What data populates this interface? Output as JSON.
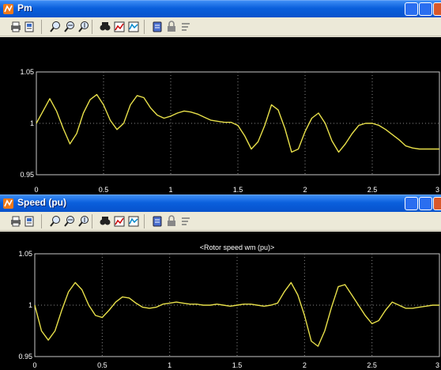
{
  "windows": [
    {
      "title": "Pm",
      "plot": {
        "title": "",
        "y_ticks": [
          "1.05",
          "1",
          "0.95"
        ],
        "x_ticks": [
          "0",
          "0.5",
          "1",
          "1.5",
          "2",
          "2.5",
          "3"
        ]
      }
    },
    {
      "title": "Speed (pu)",
      "plot": {
        "title": "<Rotor speed wm (pu)>",
        "y_ticks": [
          "1.05",
          "1",
          "0.95"
        ],
        "x_ticks": [
          "0",
          "0.5",
          "1",
          "1.5",
          "2",
          "2.5",
          "3"
        ]
      }
    }
  ],
  "toolbar_icons": [
    "print-icon",
    "print-preview-icon",
    "zoom-icon",
    "zoom-x-icon",
    "zoom-y-icon",
    "autoscale-icon",
    "save-axes-icon",
    "restore-axes-icon",
    "parameters-icon",
    "lock-icon",
    "signal-selection-icon"
  ],
  "colors": {
    "trace": "#e8e04a",
    "plot_bg": "#000000",
    "titlebar": "#0a5fdc"
  },
  "chart_data": [
    {
      "type": "line",
      "title": "",
      "xlabel": "",
      "ylabel": "",
      "xlim": [
        0,
        3
      ],
      "ylim": [
        0.95,
        1.05
      ],
      "grid": true,
      "series": [
        {
          "x": [
            0,
            0.05,
            0.1,
            0.15,
            0.2,
            0.25,
            0.3,
            0.35,
            0.4,
            0.45,
            0.5,
            0.55,
            0.6,
            0.65,
            0.7,
            0.75,
            0.8,
            0.85,
            0.9,
            0.95,
            1.0,
            1.05,
            1.1,
            1.15,
            1.2,
            1.25,
            1.3,
            1.35,
            1.4,
            1.45,
            1.5,
            1.55,
            1.6,
            1.65,
            1.7,
            1.75,
            1.8,
            1.85,
            1.9,
            1.95,
            2.0,
            2.05,
            2.1,
            2.15,
            2.2,
            2.25,
            2.3,
            2.35,
            2.4,
            2.45,
            2.5,
            2.55,
            2.6,
            2.65,
            2.7,
            2.75,
            2.8,
            2.85,
            2.9,
            2.95,
            3.0
          ],
          "y": [
            1.0,
            1.012,
            1.024,
            1.012,
            0.995,
            0.98,
            0.99,
            1.01,
            1.023,
            1.028,
            1.018,
            1.003,
            0.994,
            1.0,
            1.018,
            1.027,
            1.025,
            1.015,
            1.008,
            1.005,
            1.007,
            1.01,
            1.012,
            1.011,
            1.009,
            1.006,
            1.003,
            1.002,
            1.001,
            1.001,
            0.998,
            0.988,
            0.975,
            0.982,
            0.998,
            1.018,
            1.013,
            0.995,
            0.972,
            0.975,
            0.992,
            1.005,
            1.01,
            1.0,
            0.983,
            0.972,
            0.98,
            0.99,
            0.998,
            1.0,
            1.0,
            0.998,
            0.994,
            0.989,
            0.984,
            0.978,
            0.976,
            0.975,
            0.975,
            0.975,
            0.975
          ]
        }
      ]
    },
    {
      "type": "line",
      "title": "<Rotor speed wm (pu)>",
      "xlabel": "",
      "ylabel": "",
      "xlim": [
        0,
        3
      ],
      "ylim": [
        0.95,
        1.05
      ],
      "grid": true,
      "series": [
        {
          "x": [
            0,
            0.05,
            0.1,
            0.15,
            0.2,
            0.25,
            0.3,
            0.35,
            0.4,
            0.45,
            0.5,
            0.55,
            0.6,
            0.65,
            0.7,
            0.75,
            0.8,
            0.85,
            0.9,
            0.95,
            1.0,
            1.05,
            1.1,
            1.15,
            1.2,
            1.25,
            1.3,
            1.35,
            1.4,
            1.45,
            1.5,
            1.55,
            1.6,
            1.65,
            1.7,
            1.75,
            1.8,
            1.85,
            1.9,
            1.95,
            2.0,
            2.05,
            2.1,
            2.15,
            2.2,
            2.25,
            2.3,
            2.35,
            2.4,
            2.45,
            2.5,
            2.55,
            2.6,
            2.65,
            2.7,
            2.75,
            2.8,
            2.85,
            2.9,
            2.95,
            3.0
          ],
          "y": [
            1.0,
            0.975,
            0.966,
            0.975,
            0.995,
            1.013,
            1.022,
            1.015,
            1.0,
            0.99,
            0.988,
            0.995,
            1.003,
            1.008,
            1.007,
            1.002,
            0.998,
            0.997,
            0.998,
            1.001,
            1.002,
            1.003,
            1.002,
            1.001,
            1.001,
            1.0,
            1.0,
            1.001,
            1.0,
            0.999,
            1.0,
            1.001,
            1.001,
            1.0,
            0.999,
            1.0,
            1.002,
            1.013,
            1.022,
            1.01,
            0.99,
            0.965,
            0.96,
            0.975,
            0.998,
            1.018,
            1.02,
            1.01,
            1.0,
            0.99,
            0.982,
            0.985,
            0.995,
            1.003,
            1.0,
            0.997,
            0.997,
            0.998,
            0.999,
            1.0,
            1.0
          ]
        }
      ]
    }
  ]
}
